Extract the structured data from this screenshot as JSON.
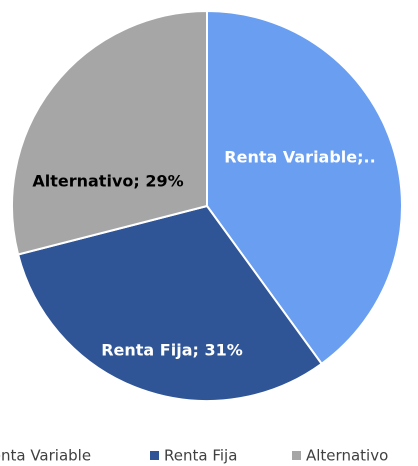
{
  "chart_data": {
    "type": "pie",
    "categories": [
      "Renta Variable",
      "Renta Fija",
      "Alternativo"
    ],
    "values": [
      40,
      31,
      29
    ],
    "value_labels": [
      "Renta Variable;..",
      "Renta Fija; 31%",
      "Alternativo; 29%"
    ],
    "colors": [
      "#6a9ef0",
      "#2f5597",
      "#a6a6a6"
    ],
    "legend": "bottom"
  }
}
